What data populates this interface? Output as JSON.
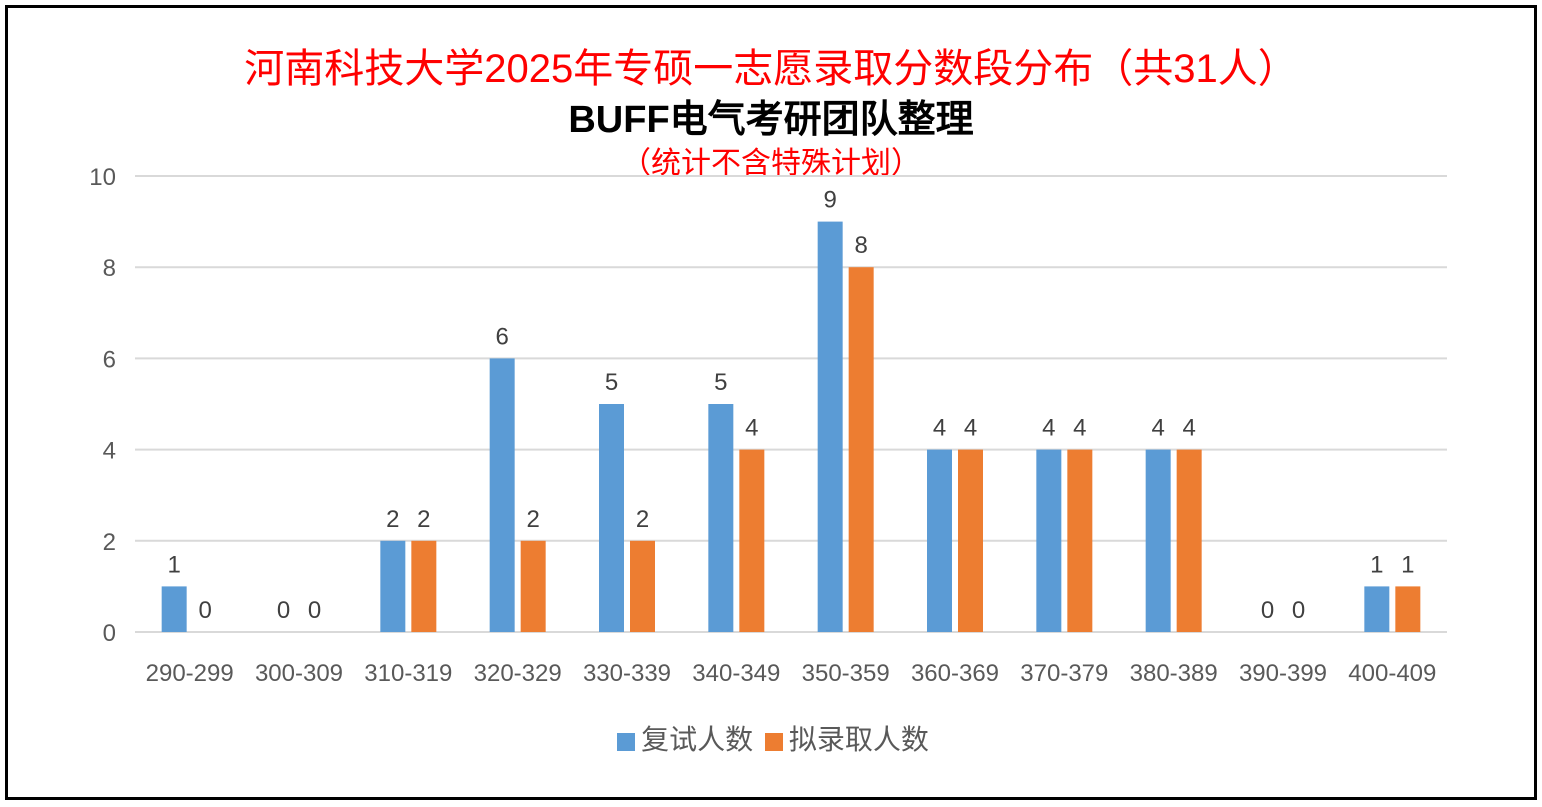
{
  "chart_data": {
    "type": "bar",
    "title": "河南科技大学2025年专硕一志愿录取分数段分布（共31人）",
    "subtitle": "BUFF电气考研团队整理",
    "note": "（统计不含特殊计划）",
    "categories": [
      "290-299",
      "300-309",
      "310-319",
      "320-329",
      "330-339",
      "340-349",
      "350-359",
      "360-369",
      "370-379",
      "380-389",
      "390-399",
      "400-409"
    ],
    "series": [
      {
        "name": "复试人数",
        "color": "#5b9bd5",
        "values": [
          1,
          0,
          2,
          6,
          5,
          5,
          9,
          4,
          4,
          4,
          0,
          1
        ]
      },
      {
        "name": "拟录取人数",
        "color": "#ed7d31",
        "values": [
          0,
          0,
          2,
          2,
          2,
          4,
          8,
          4,
          4,
          4,
          0,
          1
        ]
      }
    ],
    "ylim": [
      0,
      10
    ],
    "yticks": [
      "0",
      "2",
      "4",
      "6",
      "8",
      "10"
    ],
    "grid": true,
    "legend": "bottom",
    "data_labels": true
  }
}
